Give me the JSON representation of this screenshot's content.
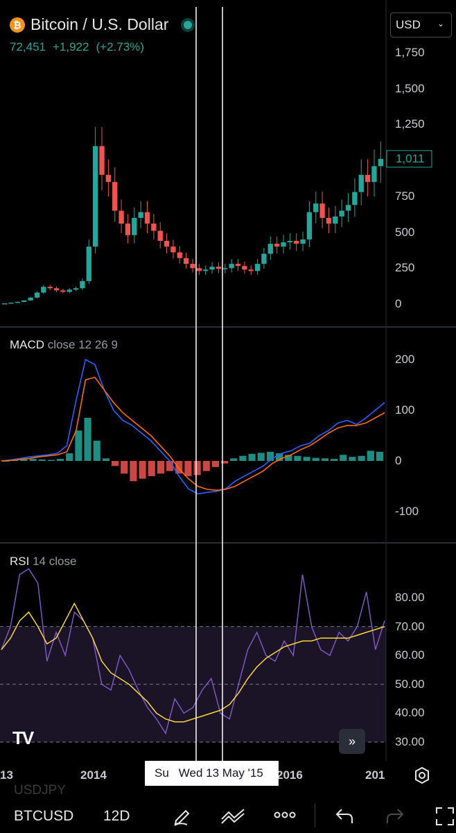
{
  "header": {
    "symbol_title": "Bitcoin / U.S. Dollar",
    "price": "72,451",
    "change": "+1,922",
    "change_pct": "(+2.73%)",
    "currency": "USD"
  },
  "macd_label": {
    "name": "MACD",
    "params": "close 12 26 9"
  },
  "rsi_label": {
    "name": "RSI",
    "params": "14 close"
  },
  "crosshair_date": "Wed 13 May '15",
  "crosshair_prefix": "Su",
  "ghost_symbol": "USDJPY",
  "toolbar": {
    "symbol": "BTCUSD",
    "interval": "12D"
  },
  "colors": {
    "up": "#26a69a",
    "down": "#ef5350",
    "macd": "#2962ff",
    "signal": "#ff6d00",
    "rsi": "#7e57c2",
    "rsi_ma": "#fdd835"
  },
  "chart_data": [
    {
      "type": "candlestick",
      "title": "Bitcoin / U.S. Dollar",
      "y_ticks": [
        "1,750",
        "1,500",
        "1,250",
        "1,011",
        "750",
        "500",
        "250",
        "0"
      ],
      "last_price_label": "1,011",
      "x_ticks": [
        "13",
        "2014",
        "2016",
        "201"
      ],
      "ylim": [
        0,
        1800
      ],
      "close_series": [
        5,
        10,
        15,
        25,
        45,
        80,
        120,
        110,
        95,
        85,
        100,
        110,
        160,
        400,
        1100,
        900,
        850,
        650,
        560,
        480,
        600,
        640,
        560,
        510,
        440,
        400,
        360,
        320,
        280,
        250,
        230,
        240,
        260,
        245,
        250,
        280,
        265,
        240,
        230,
        280,
        350,
        420,
        400,
        430,
        440,
        420,
        450,
        640,
        700,
        600,
        560,
        610,
        650,
        690,
        780,
        900,
        850,
        960,
        1011
      ]
    },
    {
      "type": "line",
      "title": "MACD close 12 26 9",
      "y_ticks": [
        "200",
        "100",
        "0",
        "-100"
      ],
      "ylim": [
        -140,
        210
      ],
      "series": [
        {
          "name": "MACD",
          "values": [
            0,
            2,
            5,
            8,
            10,
            12,
            15,
            30,
            120,
            200,
            190,
            140,
            100,
            80,
            70,
            55,
            40,
            20,
            0,
            -30,
            -55,
            -65,
            -62,
            -60,
            -55,
            -40,
            -30,
            -20,
            -10,
            5,
            15,
            20,
            30,
            35,
            50,
            60,
            75,
            80,
            72,
            85,
            100,
            115
          ]
        },
        {
          "name": "Signal",
          "values": [
            0,
            1,
            3,
            5,
            8,
            10,
            12,
            18,
            60,
            160,
            165,
            140,
            115,
            95,
            80,
            65,
            50,
            30,
            10,
            -15,
            -35,
            -50,
            -56,
            -58,
            -56,
            -50,
            -40,
            -30,
            -20,
            -5,
            5,
            12,
            22,
            30,
            42,
            55,
            65,
            70,
            70,
            75,
            85,
            95
          ]
        }
      ],
      "histogram": [
        0,
        2,
        3,
        4,
        3,
        2,
        4,
        15,
        60,
        85,
        40,
        5,
        -10,
        -25,
        -40,
        -35,
        -30,
        -25,
        -20,
        -25,
        -30,
        -28,
        -20,
        -12,
        -5,
        5,
        10,
        14,
        16,
        18,
        15,
        12,
        10,
        8,
        6,
        5,
        4,
        12,
        8,
        10,
        20,
        18
      ]
    },
    {
      "type": "line",
      "title": "RSI 14 close",
      "y_ticks": [
        "80.00",
        "70.00",
        "60.00",
        "50.00",
        "40.00",
        "30.00"
      ],
      "ylim": [
        27,
        85
      ],
      "bands": [
        30,
        50,
        70
      ],
      "series": [
        {
          "name": "RSI",
          "values": [
            62,
            70,
            88,
            90,
            85,
            58,
            68,
            60,
            75,
            72,
            66,
            50,
            48,
            60,
            55,
            48,
            42,
            38,
            33,
            45,
            40,
            42,
            48,
            52,
            40,
            38,
            50,
            62,
            68,
            60,
            58,
            65,
            60,
            88,
            70,
            62,
            60,
            68,
            65,
            70,
            82,
            62,
            72
          ]
        },
        {
          "name": "RSI MA",
          "values": [
            62,
            66,
            72,
            75,
            70,
            64,
            66,
            72,
            78,
            72,
            66,
            58,
            54,
            52,
            50,
            47,
            44,
            40,
            38,
            37,
            37,
            38,
            39,
            40,
            41,
            43,
            47,
            52,
            56,
            59,
            61,
            63,
            64,
            65,
            65,
            66,
            66,
            66,
            66,
            67,
            68,
            69,
            70
          ]
        }
      ]
    }
  ]
}
